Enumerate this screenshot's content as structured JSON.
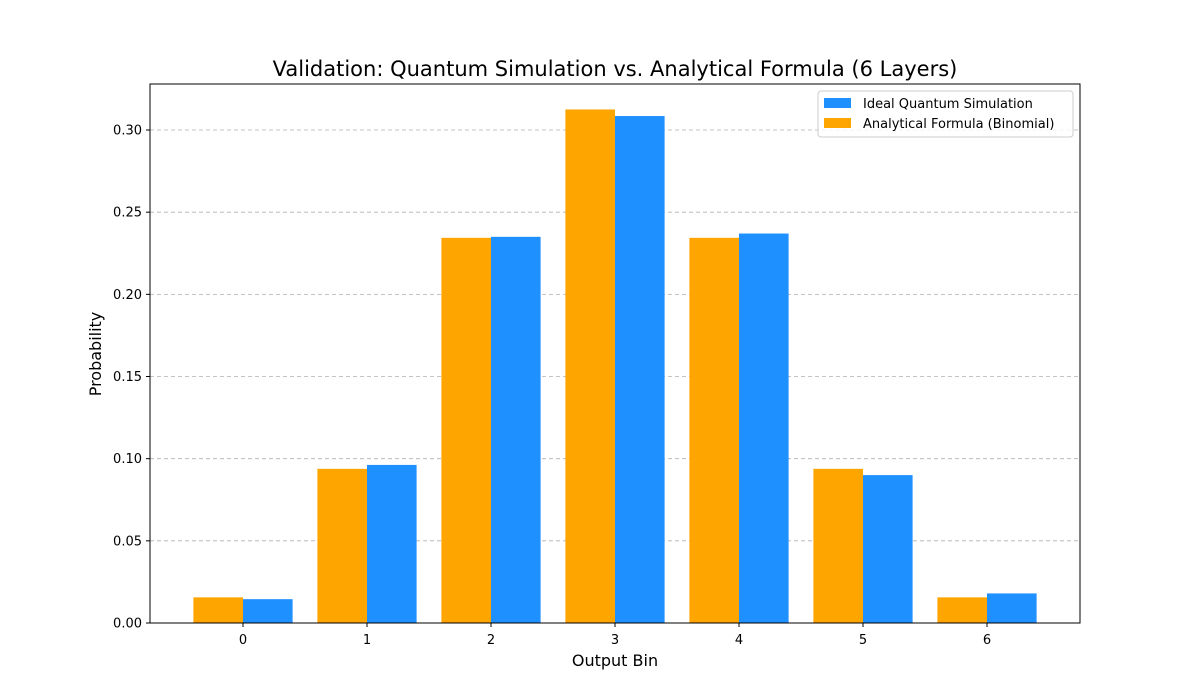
{
  "chart_data": {
    "type": "bar",
    "title": "Validation: Quantum Simulation vs. Analytical Formula (6 Layers)",
    "xlabel": "Output Bin",
    "ylabel": "Probability",
    "categories": [
      "0",
      "1",
      "2",
      "3",
      "4",
      "5",
      "6"
    ],
    "ylim": [
      0,
      0.328
    ],
    "yticks": [
      0.0,
      0.05,
      0.1,
      0.15,
      0.2,
      0.25,
      0.3
    ],
    "ytick_labels": [
      "0.00",
      "0.05",
      "0.10",
      "0.15",
      "0.20",
      "0.25",
      "0.30"
    ],
    "grid": "y-dashed",
    "legend_position": "top-right",
    "series": [
      {
        "name": "Analytical Formula (Binomial)",
        "color": "#FFA500",
        "values": [
          0.0156,
          0.0938,
          0.2344,
          0.3125,
          0.2344,
          0.0938,
          0.0156
        ]
      },
      {
        "name": "Ideal Quantum Simulation",
        "color": "#1E90FF",
        "values": [
          0.0145,
          0.0962,
          0.235,
          0.3085,
          0.237,
          0.09,
          0.018
        ]
      }
    ],
    "legend_order": [
      "Ideal Quantum Simulation",
      "Analytical Formula (Binomial)"
    ]
  }
}
